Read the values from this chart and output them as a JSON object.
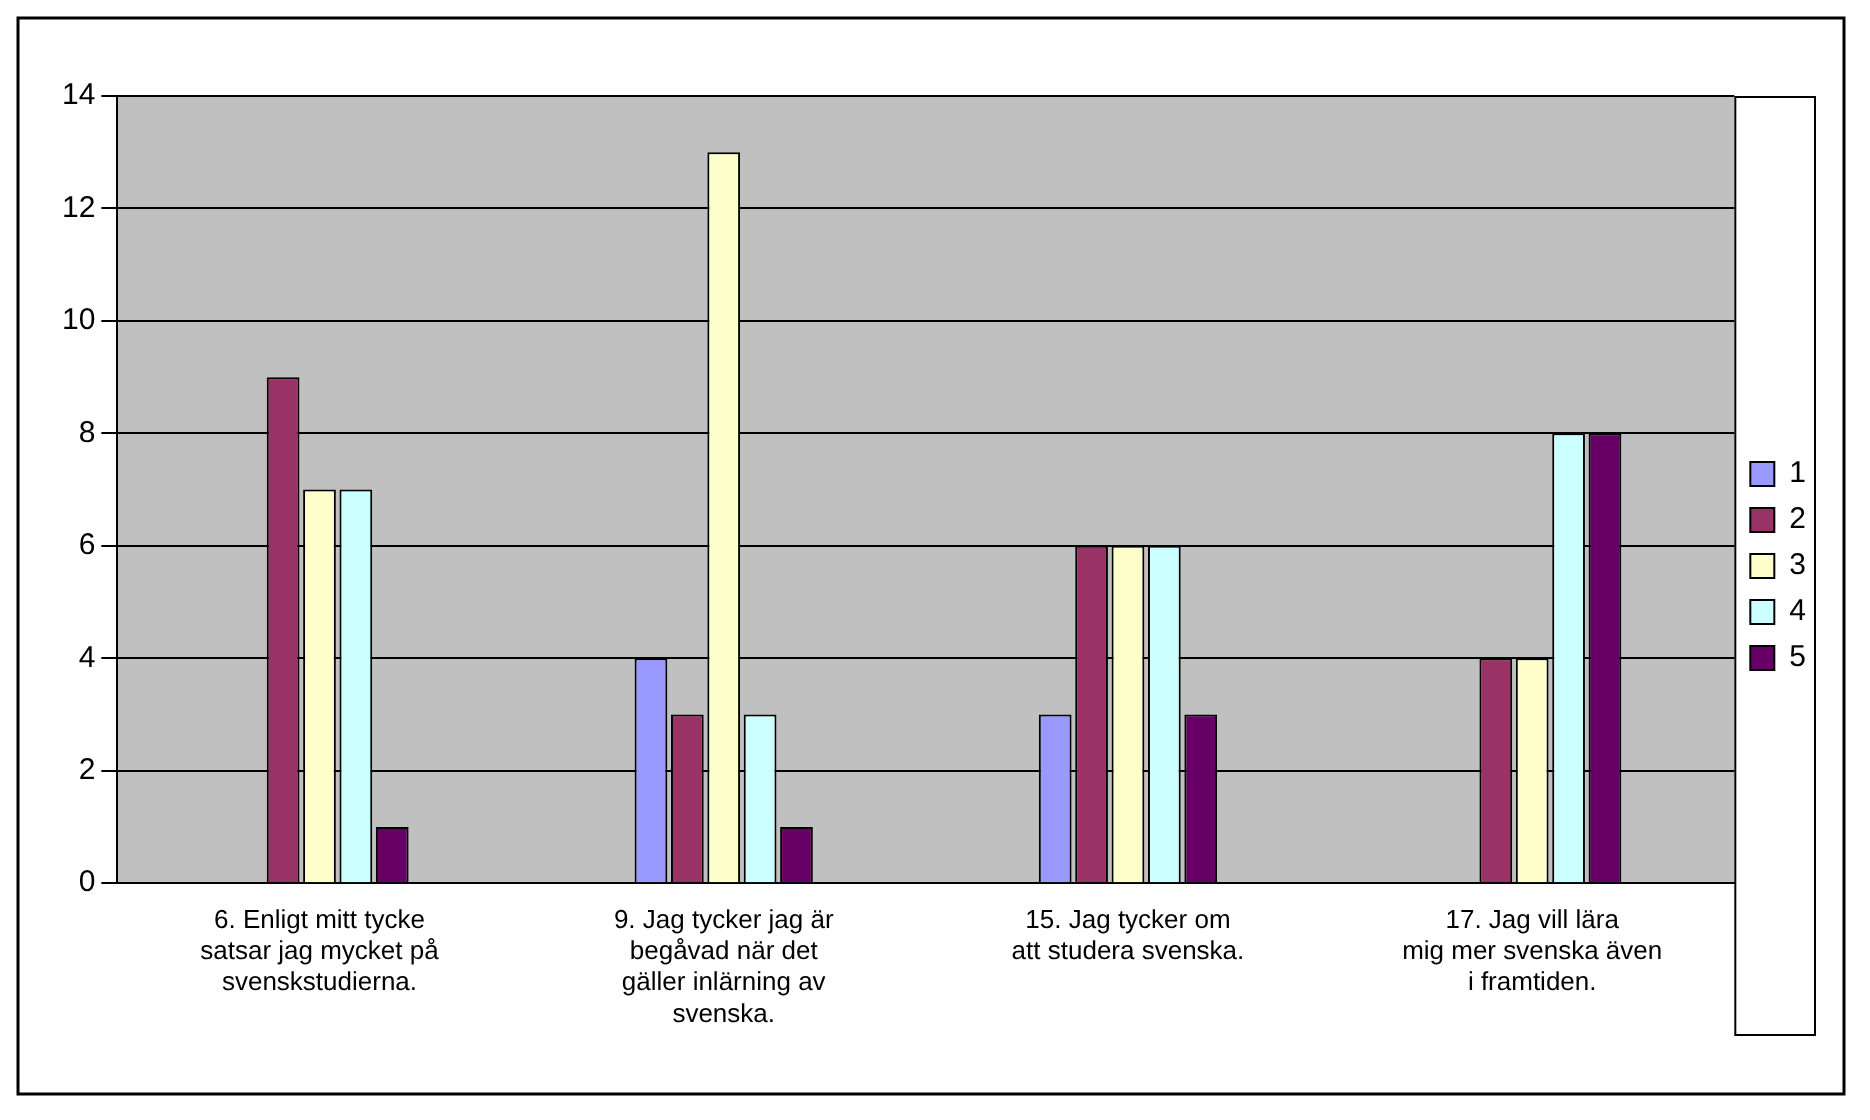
{
  "chart_data": {
    "type": "bar",
    "categories": [
      "6. Enligt mitt tycke satsar jag mycket på svenskstudierna.",
      "9. Jag tycker jag är begåvad när det gäller inlärning av svenska.",
      "15. Jag tycker om att studera svenska.",
      "17. Jag vill lära mig mer svenska även i framtiden."
    ],
    "series": [
      {
        "name": "1",
        "color": "#9999ff",
        "values": [
          0,
          4,
          3,
          0
        ]
      },
      {
        "name": "2",
        "color": "#993366",
        "values": [
          9,
          3,
          6,
          4
        ]
      },
      {
        "name": "3",
        "color": "#ffffcc",
        "values": [
          7,
          13,
          6,
          4
        ]
      },
      {
        "name": "4",
        "color": "#ccffff",
        "values": [
          7,
          3,
          6,
          8
        ]
      },
      {
        "name": "5",
        "color": "#660066",
        "values": [
          1,
          1,
          3,
          8
        ]
      }
    ],
    "ylim": [
      0,
      14
    ],
    "yticks": [
      0,
      2,
      4,
      6,
      8,
      10,
      12,
      14
    ],
    "grid": "y",
    "legend": "right"
  }
}
